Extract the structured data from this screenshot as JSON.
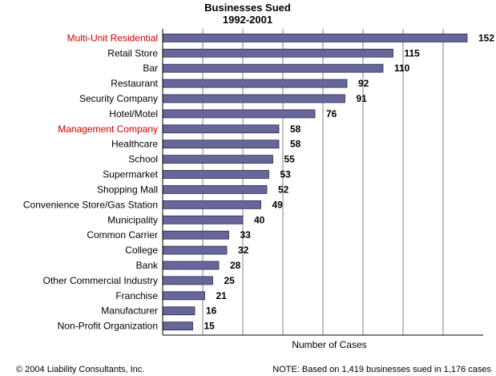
{
  "chart_data": {
    "type": "bar",
    "orientation": "horizontal",
    "title": "Businesses Sued",
    "subtitle": "1992-2001",
    "xlabel": "Number of Cases",
    "ylabel": "",
    "xlim": [
      0,
      160
    ],
    "grid": true,
    "legend": "none",
    "categories": [
      "Multi-Unit Residential",
      "Retail Store",
      "Bar",
      "Restaurant",
      "Security Company",
      "Hotel/Motel",
      "Management Company",
      "Healthcare",
      "School",
      "Supermarket",
      "Shopping Mall",
      "Convenience Store/Gas Station",
      "Municipality",
      "Common Carrier",
      "College",
      "Bank",
      "Other Commercial Industry",
      "Franchise",
      "Manufacturer",
      "Non-Profit Organization"
    ],
    "values": [
      152,
      115,
      110,
      92,
      91,
      76,
      58,
      58,
      55,
      53,
      52,
      49,
      40,
      33,
      32,
      28,
      25,
      21,
      16,
      15
    ],
    "highlighted_categories": [
      "Multi-Unit Residential",
      "Management Company"
    ]
  },
  "colors": {
    "bar_fill": "#666699",
    "bar_stroke": "#2b2b55",
    "highlight_label": "#cc0000",
    "grid": "#808080"
  },
  "footer": {
    "copyright": "© 2004 Liability Consultants, Inc.",
    "note": "NOTE: Based on 1,419 businesses sued in 1,176 cases"
  }
}
